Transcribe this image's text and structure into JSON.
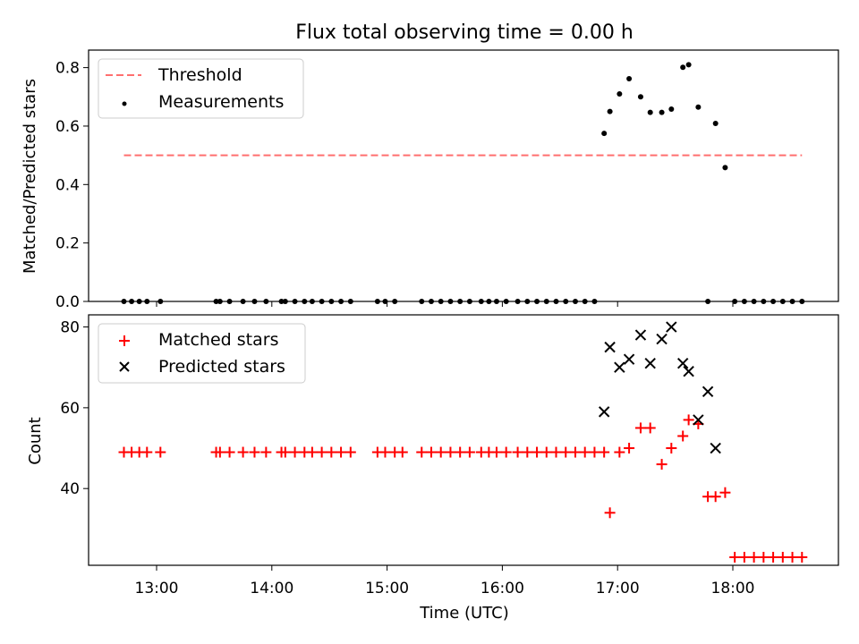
{
  "chart_data": [
    {
      "type": "scatter",
      "title": "Flux total observing time = 0.00 h",
      "xlabel": "",
      "ylabel": "Matched/Predicted stars",
      "ylim": [
        0,
        0.86
      ],
      "yticks": [
        0.0,
        0.2,
        0.4,
        0.6,
        0.8
      ],
      "ytick_labels": [
        "0.0",
        "0.2",
        "0.4",
        "0.6",
        "0.8"
      ],
      "xticks": [
        "13:00",
        "14:00",
        "15:00",
        "16:00",
        "17:00",
        "18:00"
      ],
      "legend_position": "top-left",
      "grid": false,
      "series": [
        {
          "name": "Threshold",
          "style": "dashed-line",
          "color": "#ff6f6f",
          "x": [
            "12:43",
            "18:36"
          ],
          "values": [
            0.5,
            0.5
          ]
        },
        {
          "name": "Measurements",
          "style": "dot",
          "color": "#000000",
          "x": [
            "12:43",
            "12:47",
            "12:51",
            "12:55",
            "13:02",
            "13:31",
            "13:33",
            "13:38",
            "13:45",
            "13:51",
            "13:57",
            "14:05",
            "14:07",
            "14:12",
            "14:17",
            "14:21",
            "14:26",
            "14:31",
            "14:36",
            "14:41",
            "14:55",
            "14:59",
            "15:04",
            "15:18",
            "15:23",
            "15:28",
            "15:33",
            "15:38",
            "15:43",
            "15:49",
            "15:53",
            "15:57",
            "16:02",
            "16:08",
            "16:13",
            "16:18",
            "16:23",
            "16:28",
            "16:33",
            "16:38",
            "16:43",
            "16:48",
            "16:53",
            "16:56",
            "17:01",
            "17:06",
            "17:12",
            "17:17",
            "17:23",
            "17:28",
            "17:34",
            "17:37",
            "17:42",
            "17:47",
            "17:51",
            "17:56",
            "18:01",
            "18:06",
            "18:11",
            "18:16",
            "18:21",
            "18:26",
            "18:31",
            "18:36"
          ],
          "values": [
            0,
            0,
            0,
            0,
            0,
            0,
            0,
            0,
            0,
            0,
            0,
            0,
            0,
            0,
            0,
            0,
            0,
            0,
            0,
            0,
            0,
            0,
            0,
            0,
            0,
            0,
            0,
            0,
            0,
            0,
            0,
            0,
            0,
            0,
            0,
            0,
            0,
            0,
            0,
            0,
            0,
            0,
            0.575,
            0.65,
            0.71,
            0.762,
            0.7,
            0.647,
            0.647,
            0.658,
            0.801,
            0.81,
            0.665,
            0,
            0.609,
            0.458,
            0,
            0,
            0,
            0,
            0,
            0,
            0,
            0
          ]
        }
      ]
    },
    {
      "type": "scatter",
      "title": "",
      "xlabel": "Time (UTC)",
      "ylabel": "Count",
      "ylim": [
        21,
        83
      ],
      "yticks": [
        40,
        60,
        80
      ],
      "ytick_labels": [
        "40",
        "60",
        "80"
      ],
      "xticks": [
        "13:00",
        "14:00",
        "15:00",
        "16:00",
        "17:00",
        "18:00"
      ],
      "legend_position": "top-left",
      "grid": false,
      "series": [
        {
          "name": "Matched stars",
          "style": "plus",
          "color": "#ff0000",
          "x": [
            "12:43",
            "12:47",
            "12:51",
            "12:55",
            "13:02",
            "13:31",
            "13:33",
            "13:38",
            "13:45",
            "13:51",
            "13:57",
            "14:05",
            "14:07",
            "14:12",
            "14:17",
            "14:21",
            "14:26",
            "14:31",
            "14:36",
            "14:41",
            "14:55",
            "14:59",
            "15:04",
            "15:08",
            "15:18",
            "15:23",
            "15:28",
            "15:33",
            "15:38",
            "15:43",
            "15:49",
            "15:53",
            "15:57",
            "16:02",
            "16:08",
            "16:13",
            "16:18",
            "16:23",
            "16:28",
            "16:33",
            "16:38",
            "16:43",
            "16:48",
            "16:53",
            "16:56",
            "17:01",
            "17:06",
            "17:12",
            "17:17",
            "17:23",
            "17:28",
            "17:34",
            "17:37",
            "17:42",
            "17:47",
            "17:51",
            "17:56",
            "18:01",
            "18:06",
            "18:11",
            "18:16",
            "18:21",
            "18:26",
            "18:31",
            "18:36"
          ],
          "values": [
            49,
            49,
            49,
            49,
            49,
            49,
            49,
            49,
            49,
            49,
            49,
            49,
            49,
            49,
            49,
            49,
            49,
            49,
            49,
            49,
            49,
            49,
            49,
            49,
            49,
            49,
            49,
            49,
            49,
            49,
            49,
            49,
            49,
            49,
            49,
            49,
            49,
            49,
            49,
            49,
            49,
            49,
            49,
            49,
            34,
            49,
            50,
            55,
            55,
            46,
            50,
            53,
            57,
            56,
            38,
            38,
            39,
            23,
            23,
            23,
            23,
            23,
            23,
            23,
            23
          ]
        },
        {
          "name": "Predicted stars",
          "style": "x",
          "color": "#000000",
          "x": [
            "16:53",
            "16:56",
            "17:01",
            "17:06",
            "17:12",
            "17:17",
            "17:23",
            "17:28",
            "17:34",
            "17:37",
            "17:42",
            "17:47",
            "17:51"
          ],
          "values": [
            59,
            75,
            70,
            72,
            78,
            71,
            77,
            80,
            71,
            69,
            57,
            64,
            50
          ]
        }
      ]
    }
  ]
}
